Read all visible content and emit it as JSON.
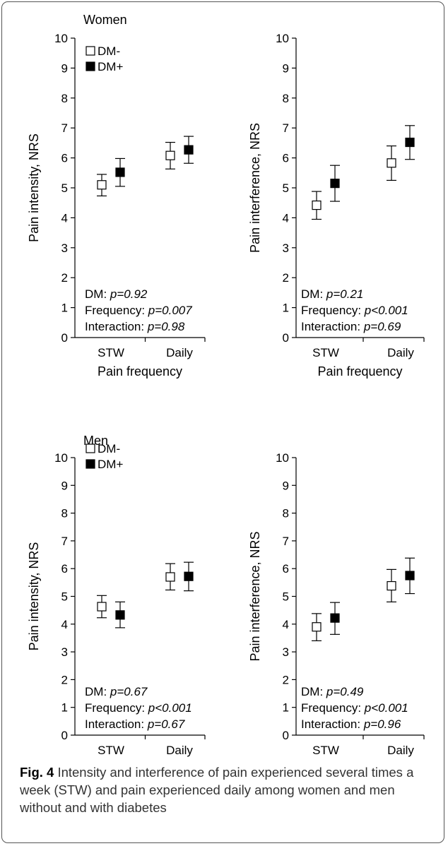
{
  "chart_data": [
    {
      "type": "scatter",
      "title": "Women",
      "xlabel": "Pain frequency",
      "ylabel": "Pain intensity, NRS",
      "categories": [
        "STW",
        "Daily"
      ],
      "ylim": [
        0,
        10
      ],
      "yticks": [
        0,
        1,
        2,
        3,
        4,
        5,
        6,
        7,
        8,
        9,
        10
      ],
      "legend": [
        "DM-",
        "DM+"
      ],
      "series": [
        {
          "name": "DM-",
          "marker": "open-square",
          "values": [
            5.1,
            6.08
          ],
          "lower": [
            4.73,
            5.63
          ],
          "upper": [
            5.45,
            6.52
          ]
        },
        {
          "name": "DM+",
          "marker": "filled-square",
          "values": [
            5.52,
            6.27
          ],
          "lower": [
            5.05,
            5.82
          ],
          "upper": [
            5.98,
            6.72
          ]
        }
      ],
      "stats": [
        {
          "label": "DM: ",
          "value": "p=0.92"
        },
        {
          "label": "Frequency: ",
          "value": "p=0.007"
        },
        {
          "label": "Interaction: ",
          "value": "p=0.98"
        }
      ]
    },
    {
      "type": "scatter",
      "title": "",
      "xlabel": "Pain frequency",
      "ylabel": "Pain interference, NRS",
      "categories": [
        "STW",
        "Daily"
      ],
      "ylim": [
        0,
        10
      ],
      "yticks": [
        0,
        1,
        2,
        3,
        4,
        5,
        6,
        7,
        8,
        9,
        10
      ],
      "legend": [],
      "series": [
        {
          "name": "DM-",
          "marker": "open-square",
          "values": [
            4.42,
            5.83
          ],
          "lower": [
            3.95,
            5.25
          ],
          "upper": [
            4.88,
            6.4
          ]
        },
        {
          "name": "DM+",
          "marker": "filled-square",
          "values": [
            5.15,
            6.52
          ],
          "lower": [
            4.55,
            5.95
          ],
          "upper": [
            5.75,
            7.08
          ]
        }
      ],
      "stats": [
        {
          "label": "DM: ",
          "value": "p=0.21"
        },
        {
          "label": "Frequency: ",
          "value": "p<0.001"
        },
        {
          "label": "Interaction: ",
          "value": "p=0.69"
        }
      ]
    },
    {
      "type": "scatter",
      "title": "Men",
      "xlabel": "Pain frequency",
      "ylabel": "Pain intensity, NRS",
      "categories": [
        "STW",
        "Daily"
      ],
      "ylim": [
        0,
        10
      ],
      "yticks": [
        0,
        1,
        2,
        3,
        4,
        5,
        6,
        7,
        8,
        9,
        10
      ],
      "legend": [
        "DM-",
        "DM+"
      ],
      "series": [
        {
          "name": "DM-",
          "marker": "open-square",
          "values": [
            4.63,
            5.7
          ],
          "lower": [
            4.23,
            5.23
          ],
          "upper": [
            5.03,
            6.18
          ]
        },
        {
          "name": "DM+",
          "marker": "filled-square",
          "values": [
            4.33,
            5.72
          ],
          "lower": [
            3.87,
            5.2
          ],
          "upper": [
            4.8,
            6.23
          ]
        }
      ],
      "stats": [
        {
          "label": "DM: ",
          "value": "p=0.67"
        },
        {
          "label": "Frequency: ",
          "value": "p<0.001"
        },
        {
          "label": "Interaction: ",
          "value": "p=0.67"
        }
      ]
    },
    {
      "type": "scatter",
      "title": "",
      "xlabel": "Pain frequency",
      "ylabel": "Pain interference, NRS",
      "categories": [
        "STW",
        "Daily"
      ],
      "ylim": [
        0,
        10
      ],
      "yticks": [
        0,
        1,
        2,
        3,
        4,
        5,
        6,
        7,
        8,
        9,
        10
      ],
      "legend": [],
      "series": [
        {
          "name": "DM-",
          "marker": "open-square",
          "values": [
            3.9,
            5.38
          ],
          "lower": [
            3.4,
            4.8
          ],
          "upper": [
            4.38,
            5.97
          ]
        },
        {
          "name": "DM+",
          "marker": "filled-square",
          "values": [
            4.22,
            5.75
          ],
          "lower": [
            3.63,
            5.1
          ],
          "upper": [
            4.78,
            6.38
          ]
        }
      ],
      "stats": [
        {
          "label": "DM: ",
          "value": "p=0.49"
        },
        {
          "label": "Frequency: ",
          "value": "p<0.001"
        },
        {
          "label": "Interaction: ",
          "value": "p=0.96"
        }
      ]
    }
  ],
  "caption": {
    "label": "Fig. 4",
    "text": " Intensity and interference of pain experienced several times a week (STW) and pain experienced daily among women and men without and with diabetes"
  }
}
